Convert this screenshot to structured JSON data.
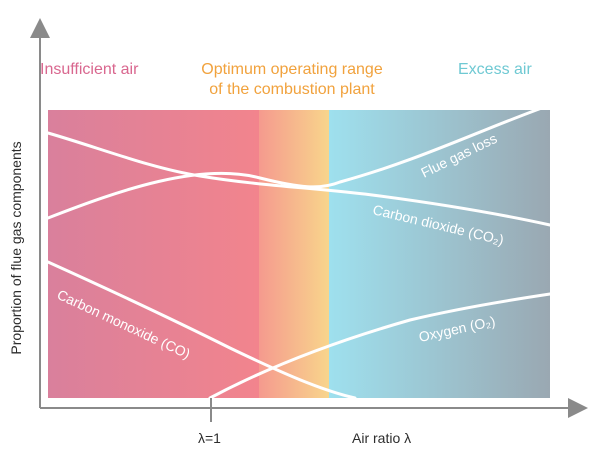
{
  "regions": {
    "insufficient": {
      "label": "Insufficient air",
      "color": "#d9678f"
    },
    "optimum": {
      "line1": "Optimum operating range",
      "line2": "of the combustion plant",
      "color": "#f1a23d"
    },
    "excess": {
      "label": "Excess air",
      "color": "#6fc9d3"
    }
  },
  "axes": {
    "y_label": "Proportion of flue gas components",
    "x_label": "Air ratio λ",
    "lambda_mark": "λ=1"
  },
  "curves": {
    "flue_gas_loss": "Flue gas loss",
    "carbon_dioxide": "Carbon dioxide (CO₂)",
    "carbon_monoxide": "Carbon monoxide (CO)",
    "oxygen": "Oxygen (O₂)"
  },
  "colors": {
    "curve": "#ffffff",
    "axis": "#8a8a8a",
    "text": "#2d2d2d"
  }
}
